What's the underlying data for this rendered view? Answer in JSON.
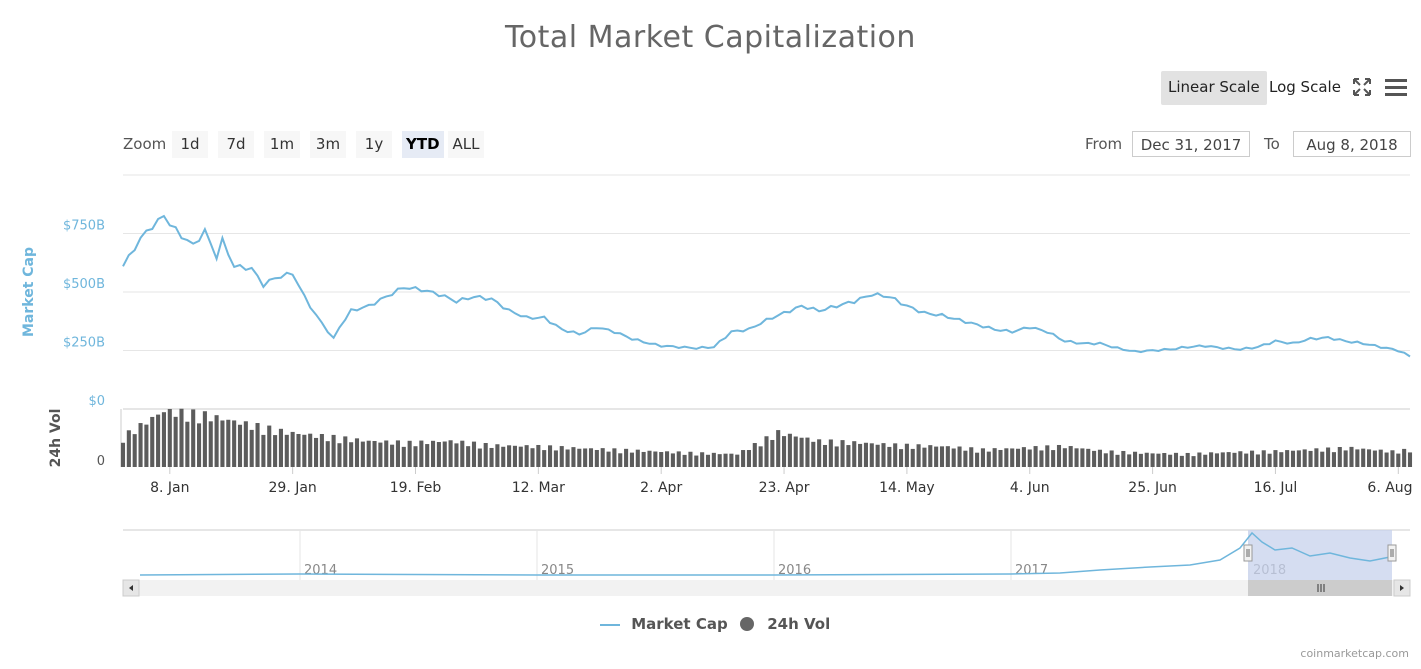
{
  "title": "Total Market Capitalization",
  "scale": {
    "linear": "Linear Scale",
    "log": "Log Scale"
  },
  "icons": {
    "fullscreen": "fullscreen-icon",
    "menu": "menu-icon"
  },
  "zoom": {
    "label": "Zoom",
    "buttons": [
      "1d",
      "7d",
      "1m",
      "3m",
      "1y",
      "YTD",
      "ALL"
    ],
    "selected": "YTD"
  },
  "range": {
    "from_label": "From",
    "from_value": "Dec 31, 2017",
    "to_label": "To",
    "to_value": "Aug 8, 2018"
  },
  "legend": {
    "market_cap": "Market Cap",
    "volume": "24h Vol"
  },
  "credits": "coinmarketcap.com",
  "colors": {
    "market_cap": "#6fb6dc",
    "volume": "#5c5c5c",
    "navigator_mask": "#c7d2ec"
  },
  "chart_data": {
    "type": "line",
    "title": "Total Market Capitalization",
    "x_range": [
      "2017-12-31",
      "2018-08-08"
    ],
    "x_ticks": [
      "8. Jan",
      "29. Jan",
      "19. Feb",
      "12. Mar",
      "2. Apr",
      "23. Apr",
      "14. May",
      "4. Jun",
      "25. Jun",
      "16. Jul",
      "6. Aug"
    ],
    "y_axis": {
      "label": "Market Cap",
      "ticks": [
        "$0",
        "$250B",
        "$500B",
        "$750B"
      ],
      "range": [
        0,
        1000
      ],
      "unit": "B USD"
    },
    "vol_axis": {
      "label": "24h Vol",
      "ticks": [
        "0"
      ]
    },
    "series": [
      {
        "name": "Market Cap",
        "x": [
          "2017-12-31",
          "2018-01-02",
          "2018-01-04",
          "2018-01-06",
          "2018-01-07",
          "2018-01-08",
          "2018-01-10",
          "2018-01-12",
          "2018-01-14",
          "2018-01-16",
          "2018-01-17",
          "2018-01-19",
          "2018-01-22",
          "2018-01-24",
          "2018-01-26",
          "2018-01-29",
          "2018-01-31",
          "2018-02-02",
          "2018-02-05",
          "2018-02-06",
          "2018-02-08",
          "2018-02-11",
          "2018-02-14",
          "2018-02-17",
          "2018-02-20",
          "2018-02-23",
          "2018-02-26",
          "2018-03-01",
          "2018-03-04",
          "2018-03-07",
          "2018-03-10",
          "2018-03-13",
          "2018-03-16",
          "2018-03-19",
          "2018-03-22",
          "2018-03-25",
          "2018-03-28",
          "2018-03-31",
          "2018-04-02",
          "2018-04-05",
          "2018-04-08",
          "2018-04-11",
          "2018-04-14",
          "2018-04-17",
          "2018-04-20",
          "2018-04-23",
          "2018-04-26",
          "2018-04-29",
          "2018-05-02",
          "2018-05-05",
          "2018-05-08",
          "2018-05-11",
          "2018-05-14",
          "2018-05-17",
          "2018-05-20",
          "2018-05-23",
          "2018-05-26",
          "2018-05-29",
          "2018-06-01",
          "2018-06-04",
          "2018-06-07",
          "2018-06-10",
          "2018-06-13",
          "2018-06-16",
          "2018-06-19",
          "2018-06-22",
          "2018-06-25",
          "2018-06-28",
          "2018-07-01",
          "2018-07-04",
          "2018-07-07",
          "2018-07-10",
          "2018-07-13",
          "2018-07-16",
          "2018-07-19",
          "2018-07-22",
          "2018-07-25",
          "2018-07-28",
          "2018-07-31",
          "2018-08-03",
          "2018-08-06",
          "2018-08-08"
        ],
        "values": [
          610,
          690,
          760,
          800,
          830,
          790,
          740,
          700,
          760,
          650,
          720,
          610,
          600,
          530,
          560,
          580,
          480,
          400,
          300,
          350,
          420,
          440,
          480,
          520,
          510,
          490,
          460,
          480,
          470,
          420,
          390,
          390,
          340,
          320,
          350,
          330,
          300,
          280,
          270,
          265,
          260,
          265,
          330,
          340,
          380,
          410,
          440,
          420,
          440,
          460,
          490,
          480,
          440,
          410,
          400,
          380,
          360,
          340,
          330,
          350,
          330,
          290,
          280,
          280,
          260,
          245,
          250,
          255,
          265,
          270,
          260,
          255,
          265,
          290,
          280,
          300,
          305,
          290,
          280,
          265,
          250,
          225
        ]
      },
      {
        "name": "24h Vol",
        "x": [
          "2017-12-31",
          "2018-01-07",
          "2018-01-14",
          "2018-01-21",
          "2018-01-28",
          "2018-02-04",
          "2018-02-11",
          "2018-02-18",
          "2018-02-25",
          "2018-03-04",
          "2018-03-11",
          "2018-03-18",
          "2018-03-25",
          "2018-04-01",
          "2018-04-08",
          "2018-04-15",
          "2018-04-22",
          "2018-04-29",
          "2018-05-06",
          "2018-05-13",
          "2018-05-20",
          "2018-05-27",
          "2018-06-03",
          "2018-06-10",
          "2018-06-17",
          "2018-06-24",
          "2018-07-01",
          "2018-07-08",
          "2018-07-15",
          "2018-07-22",
          "2018-07-29",
          "2018-08-05",
          "2018-08-08"
        ],
        "values": [
          35,
          65,
          60,
          50,
          40,
          35,
          30,
          28,
          30,
          25,
          24,
          22,
          20,
          18,
          16,
          15,
          40,
          30,
          28,
          25,
          24,
          20,
          22,
          24,
          18,
          16,
          15,
          17,
          18,
          20,
          22,
          18,
          20
        ]
      }
    ],
    "navigator": {
      "labels": [
        "2014",
        "2015",
        "2016",
        "2017",
        "2018"
      ]
    }
  }
}
